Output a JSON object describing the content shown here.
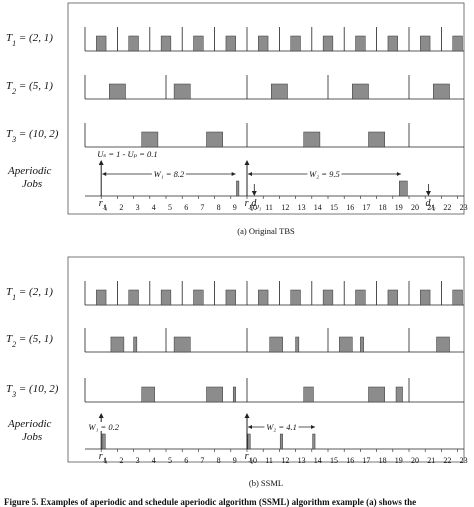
{
  "panels": [
    {
      "id": "a",
      "caption": "(a) Original TBS",
      "tasks": [
        {
          "label_html": "T<tspan baseline-shift='sub' font-size='8'>1</tspan> = (2, 1)",
          "label": "T1 = (2, 1)",
          "period": 2,
          "jobs": [
            [
              0.7,
              1.3
            ],
            [
              2.7,
              3.3
            ],
            [
              4.7,
              5.3
            ],
            [
              6.7,
              7.3
            ],
            [
              8.7,
              9.3
            ],
            [
              10.7,
              11.3
            ],
            [
              12.7,
              13.3
            ],
            [
              14.7,
              15.3
            ],
            [
              16.7,
              17.3
            ],
            [
              18.7,
              19.3
            ],
            [
              20.7,
              21.3
            ],
            [
              22.7,
              23.3
            ]
          ]
        },
        {
          "label_html": "T<tspan baseline-shift='sub' font-size='8'>2</tspan> = (5, 1)",
          "label": "T2 = (5, 1)",
          "period": 5,
          "jobs": [
            [
              1.5,
              2.5
            ],
            [
              5.5,
              6.5
            ],
            [
              11.5,
              12.5
            ],
            [
              16.5,
              17.5
            ],
            [
              21.5,
              22.5
            ]
          ]
        },
        {
          "label_html": "T<tspan baseline-shift='sub' font-size='8'>3</tspan> = (10, 2)",
          "label": "T3 = (10, 2)",
          "period": 10,
          "jobs": [
            [
              3.5,
              4.5
            ],
            [
              7.5,
              8.5
            ],
            [
              13.5,
              14.5
            ],
            [
              17.5,
              18.5
            ]
          ]
        }
      ],
      "aperiodic_label_line1": "Aperiodic",
      "aperiodic_label_line2": "Jobs",
      "jobs": [
        [
          9.35,
          9.5
        ],
        [
          19.4,
          19.9
        ]
      ],
      "releases": [
        {
          "t": 1,
          "text": "r",
          "sub": "J1"
        },
        {
          "t": 10,
          "text": "r",
          "sub": "J2"
        }
      ],
      "deadlines": [
        {
          "t": 10.45,
          "text": "d",
          "sub": "J1"
        },
        {
          "t": 21.2,
          "text": "d",
          "sub": "J2"
        }
      ],
      "windows": [
        {
          "from": 1,
          "to": 9.3,
          "label": "W₁ = 8.2"
        },
        {
          "from": 10,
          "to": 19.5,
          "label": "W₂ = 9.5"
        }
      ],
      "utilization_note": "Uₛ = 1 - Uₚ = 0.1"
    },
    {
      "id": "b",
      "caption": "(b) SSML",
      "tasks": [
        {
          "label_html": "T<tspan baseline-shift='sub' font-size='8'>1</tspan> = (2, 1)",
          "label": "T1 = (2, 1)",
          "period": 2,
          "jobs": [
            [
              0.7,
              1.3
            ],
            [
              2.7,
              3.3
            ],
            [
              4.7,
              5.3
            ],
            [
              6.7,
              7.3
            ],
            [
              8.7,
              9.3
            ],
            [
              10.7,
              11.3
            ],
            [
              12.7,
              13.3
            ],
            [
              14.7,
              15.3
            ],
            [
              16.7,
              17.3
            ],
            [
              18.7,
              19.3
            ],
            [
              20.7,
              21.3
            ],
            [
              22.7,
              23.3
            ]
          ]
        },
        {
          "label_html": "T<tspan baseline-shift='sub' font-size='8'>2</tspan> = (5, 1)",
          "label": "T2 = (5, 1)",
          "period": 5,
          "jobs": [
            [
              1.6,
              2.4
            ],
            [
              3.0,
              3.2
            ],
            [
              5.5,
              6.5
            ],
            [
              11.4,
              12.2
            ],
            [
              13.0,
              13.2
            ],
            [
              15.7,
              16.5
            ],
            [
              17.0,
              17.2
            ],
            [
              21.7,
              22.5
            ]
          ]
        },
        {
          "label_html": "T<tspan baseline-shift='sub' font-size='8'>3</tspan> = (10, 2)",
          "label": "T3 = (10, 2)",
          "period": 10,
          "jobs": [
            [
              3.5,
              4.3
            ],
            [
              7.5,
              8.5
            ],
            [
              9.15,
              9.3
            ],
            [
              13.5,
              14.1
            ],
            [
              17.5,
              18.5
            ],
            [
              19.2,
              19.6
            ]
          ]
        }
      ],
      "aperiodic_label_line1": "Aperiodic",
      "aperiodic_label_line2": "Jobs",
      "jobs": [
        [
          1.05,
          1.25
        ],
        [
          10.05,
          10.2
        ],
        [
          12.05,
          12.2
        ],
        [
          14.05,
          14.2
        ]
      ],
      "releases": [
        {
          "t": 1,
          "text": "r",
          "sub": "J1"
        },
        {
          "t": 10,
          "text": "r",
          "sub": "J2"
        }
      ],
      "deadlines": [],
      "windows": [
        {
          "from": 1,
          "to": 1.25,
          "label": "W₁ = 0.2"
        },
        {
          "from": 10,
          "to": 14.2,
          "label": "W₂ = 4.1"
        }
      ],
      "utilization_note": ""
    }
  ],
  "axis_ticks": [
    "1",
    "2",
    "3",
    "4",
    "5",
    "6",
    "7",
    "8",
    "9",
    "10",
    "11",
    "12",
    "13",
    "14",
    "15",
    "16",
    "17",
    "18",
    "19",
    "20",
    "21",
    "22",
    "23"
  ],
  "footer_text": "Figure 5. Examples of aperiodic and schedule aperiodic algorithm (SSML) algorithm example (a) shows the",
  "colors": {
    "block": "#8c8c8c",
    "line": "#222222",
    "frame": "#555555"
  }
}
